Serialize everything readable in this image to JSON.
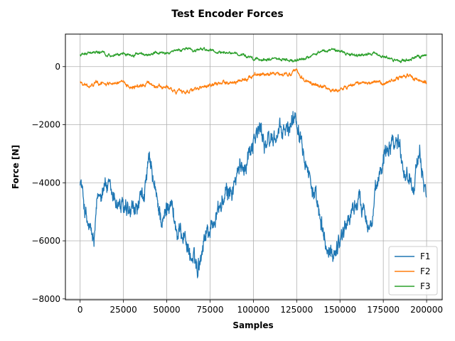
{
  "chart_data": {
    "type": "line",
    "title": "Test Encoder Forces",
    "xlabel": "Samples",
    "ylabel": "Force [N]",
    "xlim": [
      -8500,
      209000
    ],
    "ylim": [
      -8030,
      1120
    ],
    "xticks": [
      0,
      25000,
      50000,
      75000,
      100000,
      125000,
      150000,
      175000,
      200000
    ],
    "xtick_labels": [
      "0",
      "25000",
      "50000",
      "75000",
      "100000",
      "125000",
      "150000",
      "175000",
      "200000"
    ],
    "yticks": [
      -8000,
      -6000,
      -4000,
      -2000,
      0
    ],
    "ytick_labels": [
      "−8000",
      "−6000",
      "−4000",
      "−2000",
      "0"
    ],
    "grid": true,
    "legend_position": "lower-right",
    "x_start": 0,
    "x_end": 200000,
    "series": [
      {
        "name": "F1",
        "color": "#1f77b4",
        "noise": 380,
        "x": [
          0,
          4000,
          8000,
          10000,
          14000,
          18000,
          22000,
          28000,
          32000,
          36000,
          40000,
          44000,
          48000,
          52000,
          56000,
          60000,
          64000,
          68000,
          72000,
          76000,
          80000,
          84000,
          88000,
          92000,
          96000,
          100000,
          104000,
          108000,
          112000,
          116000,
          120000,
          124000,
          128000,
          132000,
          136000,
          140000,
          144000,
          148000,
          152000,
          156000,
          160000,
          164000,
          168000,
          172000,
          176000,
          180000,
          184000,
          188000,
          192000,
          196000,
          200000
        ],
        "y": [
          -3800,
          -5400,
          -6100,
          -4700,
          -3900,
          -4500,
          -4700,
          -5200,
          -5000,
          -4600,
          -3300,
          -4600,
          -5400,
          -4400,
          -5800,
          -5700,
          -6600,
          -6900,
          -5700,
          -5500,
          -4900,
          -4500,
          -4200,
          -3600,
          -3200,
          -2400,
          -2200,
          -2700,
          -2400,
          -2300,
          -2200,
          -1600,
          -2300,
          -3600,
          -4700,
          -5800,
          -6600,
          -6200,
          -5600,
          -5100,
          -4600,
          -4800,
          -5500,
          -4000,
          -2800,
          -2400,
          -2600,
          -3700,
          -3900,
          -3300,
          -4300
        ]
      },
      {
        "name": "F2",
        "color": "#ff7f0e",
        "noise": 70,
        "x": [
          0,
          5000,
          10000,
          15000,
          20000,
          25000,
          30000,
          35000,
          40000,
          45000,
          50000,
          55000,
          60000,
          65000,
          70000,
          75000,
          80000,
          85000,
          90000,
          95000,
          100000,
          105000,
          110000,
          115000,
          120000,
          125000,
          130000,
          135000,
          140000,
          145000,
          150000,
          155000,
          160000,
          165000,
          170000,
          175000,
          180000,
          185000,
          190000,
          195000,
          200000
        ],
        "y": [
          -520,
          -700,
          -550,
          -600,
          -520,
          -600,
          -700,
          -680,
          -560,
          -700,
          -720,
          -850,
          -850,
          -800,
          -750,
          -680,
          -600,
          -520,
          -560,
          -470,
          -250,
          -260,
          -240,
          -300,
          -280,
          -170,
          -480,
          -600,
          -700,
          -820,
          -800,
          -690,
          -560,
          -570,
          -560,
          -600,
          -450,
          -380,
          -300,
          -450,
          -580
        ]
      },
      {
        "name": "F3",
        "color": "#2ca02c",
        "noise": 55,
        "x": [
          0,
          5000,
          10000,
          15000,
          20000,
          25000,
          30000,
          35000,
          40000,
          45000,
          50000,
          55000,
          60000,
          65000,
          70000,
          75000,
          80000,
          85000,
          90000,
          95000,
          100000,
          105000,
          110000,
          115000,
          120000,
          125000,
          130000,
          135000,
          140000,
          145000,
          150000,
          155000,
          160000,
          165000,
          170000,
          175000,
          180000,
          185000,
          190000,
          195000,
          200000
        ],
        "y": [
          380,
          480,
          520,
          430,
          380,
          450,
          370,
          480,
          400,
          500,
          470,
          520,
          600,
          560,
          600,
          540,
          490,
          470,
          430,
          360,
          270,
          230,
          260,
          280,
          210,
          200,
          280,
          400,
          560,
          580,
          500,
          430,
          400,
          440,
          470,
          360,
          260,
          190,
          250,
          320,
          380
        ]
      }
    ]
  }
}
